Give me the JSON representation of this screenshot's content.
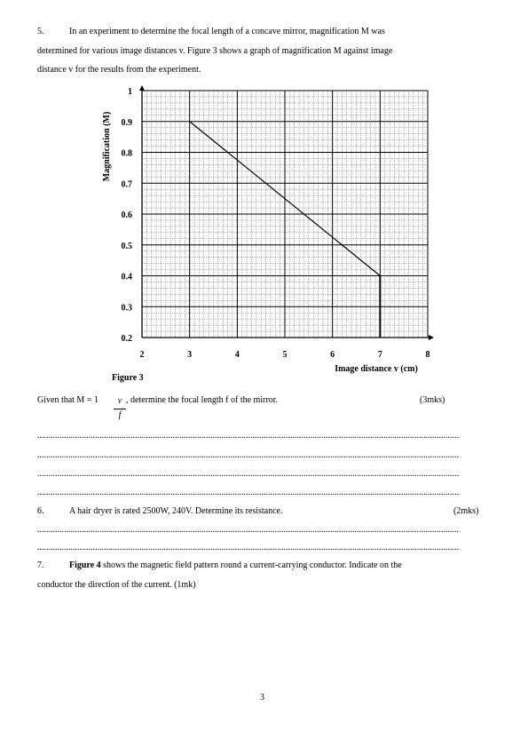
{
  "q5": {
    "number": "5.",
    "line1": "In an experiment to determine the focal length of a concave mirror, magnification M was",
    "line2": "determined for various image distances v. Figure 3 shows a graph of magnification M against image",
    "line3": "distance v for the results from the experiment.",
    "given_prefix": "Given that M = 1",
    "frac_num": "v",
    "frac_den": "f",
    "given_suffix": ", determine the focal length f of the mirror.",
    "marks": "(3mks)"
  },
  "chart_data": {
    "type": "line",
    "ylabel": "Magnification (M)",
    "xlabel": "Image distance v (cm)",
    "caption": "Figure 3",
    "xlim": [
      2,
      8
    ],
    "ylim": [
      0.2,
      1.0
    ],
    "x_ticks": [
      "2",
      "3",
      "4",
      "5",
      "6",
      "7",
      "8"
    ],
    "y_ticks": [
      "0.2",
      "0.3",
      "0.4",
      "0.5",
      "0.6",
      "0.7",
      "0.8",
      "0.9",
      "1"
    ],
    "x_tick_values": [
      2,
      3,
      4,
      5,
      6,
      7,
      8
    ],
    "y_tick_values": [
      0.2,
      0.3,
      0.4,
      0.5,
      0.6,
      0.7,
      0.8,
      0.9,
      1.0
    ],
    "grid": true,
    "series": [
      {
        "x": [
          3,
          7
        ],
        "y": [
          0.9,
          0.4
        ]
      }
    ],
    "vertical_drop": {
      "x": 7,
      "y_from": 0.4,
      "y_to": 0.2
    }
  },
  "answer_dots": "..................................................................................................................................................................................................",
  "q6": {
    "number": "6.",
    "text": "A hair dryer is rated 2500W, 240V. Determine its resistance.",
    "marks": "(2mks)"
  },
  "q7": {
    "number": "7.",
    "figure_ref": "Figure 4",
    "text_a": " shows the magnetic field pattern round a current-carrying conductor. Indicate on the",
    "text_b": "conductor the direction of the current. (1mk)"
  },
  "page_number": "3"
}
